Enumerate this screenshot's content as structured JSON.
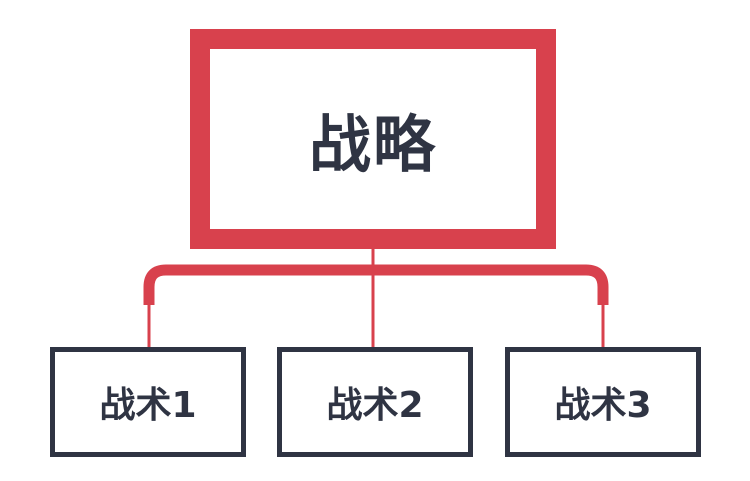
{
  "root": {
    "label": "战略"
  },
  "children": [
    {
      "label": "战术1"
    },
    {
      "label": "战术2"
    },
    {
      "label": "战术3"
    }
  ],
  "colors": {
    "accent": "#d8414d",
    "node_border": "#2f3443",
    "text": "#2f3443",
    "background": "#ffffff"
  }
}
